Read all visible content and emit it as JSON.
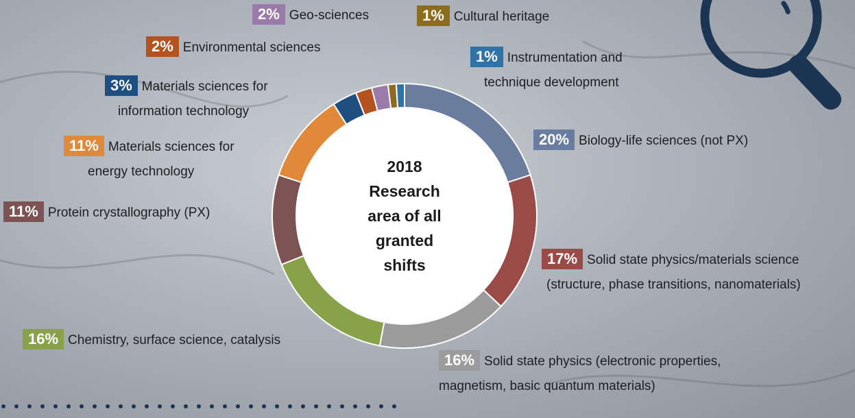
{
  "chart_data": {
    "type": "donut",
    "title": "2018\nResearch\narea of all\ngranted\nshifts",
    "categories": [
      "Biology-life sciences (not PX)",
      "Solid state physics/materials science\n(structure, phase transitions, nanomaterials)",
      "Solid state physics (electronic properties,\nmagnetism, basic quantum materials)",
      "Chemistry, surface science, catalysis",
      "Protein crystallography (PX)",
      "Materials sciences for\nenergy technology",
      "Materials sciences for\ninformation technology",
      "Environmental sciences",
      "Geo-sciences",
      "Cultural heritage",
      "Instrumentation and\ntechnique development"
    ],
    "values": [
      20,
      17,
      16,
      16,
      11,
      11,
      3,
      2,
      2,
      1,
      1
    ],
    "value_labels": [
      "20%",
      "17%",
      "16%",
      "16%",
      "11%",
      "11%",
      "3%",
      "2%",
      "2%",
      "1%",
      "1%"
    ],
    "colors": [
      "#6a7d9e",
      "#9a4b48",
      "#9b9b9b",
      "#88a24a",
      "#7c5252",
      "#e0893a",
      "#1f4e80",
      "#b4531f",
      "#9a7aa8",
      "#8c6d1f",
      "#2f73a6"
    ]
  }
}
